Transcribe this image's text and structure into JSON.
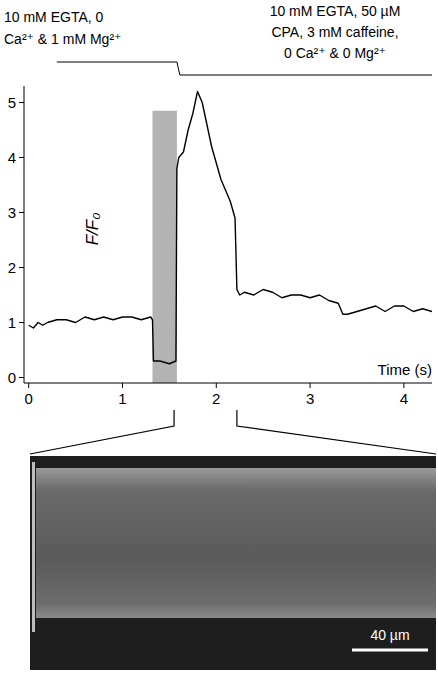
{
  "chart_data": {
    "type": "line",
    "x": [
      0,
      0.05,
      0.1,
      0.15,
      0.2,
      0.3,
      0.4,
      0.5,
      0.6,
      0.7,
      0.8,
      0.9,
      1.0,
      1.1,
      1.2,
      1.3,
      1.32,
      1.33,
      1.4,
      1.5,
      1.57,
      1.58,
      1.6,
      1.65,
      1.7,
      1.75,
      1.8,
      1.85,
      1.9,
      1.95,
      2.0,
      2.05,
      2.1,
      2.15,
      2.2,
      2.22,
      2.25,
      2.3,
      2.4,
      2.5,
      2.6,
      2.7,
      2.8,
      2.9,
      3.0,
      3.1,
      3.2,
      3.3,
      3.35,
      3.4,
      3.5,
      3.6,
      3.7,
      3.8,
      3.9,
      4.0,
      4.1,
      4.2,
      4.3
    ],
    "values": [
      0.95,
      0.9,
      1.0,
      0.95,
      1.0,
      1.05,
      1.05,
      1.0,
      1.1,
      1.05,
      1.1,
      1.05,
      1.1,
      1.1,
      1.05,
      1.1,
      1.05,
      0.3,
      0.3,
      0.25,
      0.3,
      3.8,
      4.0,
      4.1,
      4.5,
      4.8,
      5.2,
      5.0,
      4.6,
      4.2,
      3.9,
      3.6,
      3.4,
      3.2,
      2.9,
      1.6,
      1.5,
      1.55,
      1.5,
      1.6,
      1.55,
      1.45,
      1.5,
      1.5,
      1.45,
      1.5,
      1.4,
      1.35,
      1.15,
      1.15,
      1.2,
      1.25,
      1.3,
      1.2,
      1.3,
      1.3,
      1.2,
      1.25,
      1.2
    ],
    "color": "#000000",
    "xlim": [
      -0.05,
      4.3
    ],
    "xticks": [
      0,
      1,
      2,
      3,
      4
    ],
    "ylim": [
      -0.1,
      5.3
    ],
    "yticks": [
      0,
      1,
      2,
      3,
      4,
      5
    ],
    "x_label": "Time (s)",
    "y_label": "F/F₀",
    "shaded_x": [
      1.32,
      1.58
    ],
    "annotations": [
      {
        "lines": [
          "10 mM EGTA, 0",
          "Ca²⁺ & 1 mM Mg²⁺"
        ],
        "x_range": [
          0.3,
          1.58
        ]
      },
      {
        "lines": [
          "10 mM EGTA, 50 µM",
          "CPA, 3 mM caffeine,",
          "0 Ca²⁺ & 0 Mg²⁺"
        ],
        "x_range": [
          1.58,
          4.3
        ]
      }
    ],
    "zoom_x": [
      1.55,
      2.22
    ],
    "scale_bar_label": "40 µm"
  }
}
